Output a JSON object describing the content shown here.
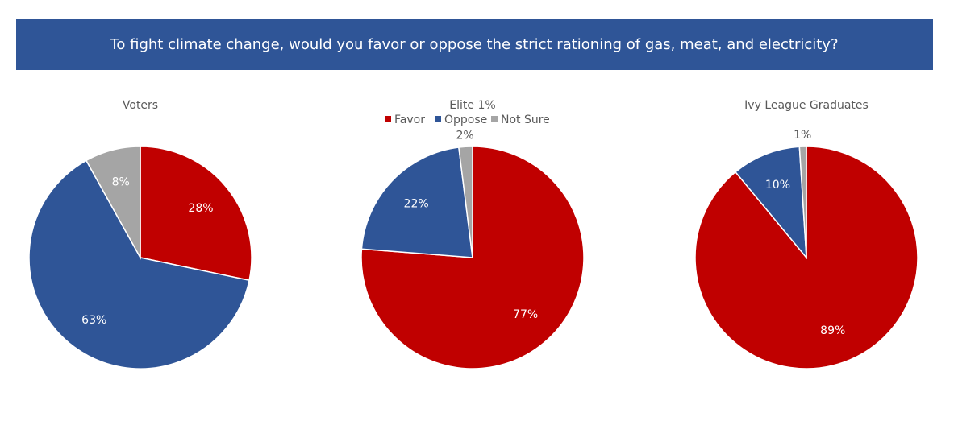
{
  "title": "To fight climate change, would you favor or oppose the strict rationing of gas, meat, and electricity?",
  "chart_data": [
    {
      "type": "pie",
      "title": "Voters",
      "categories": [
        "Favor",
        "Oppose",
        "Not Sure"
      ],
      "values": [
        28,
        63,
        8
      ],
      "value_labels": [
        "28%",
        "63%",
        "8%"
      ],
      "colors": [
        "#c00000",
        "#2f5597",
        "#a5a5a5"
      ]
    },
    {
      "type": "pie",
      "title": "Elite 1%",
      "categories": [
        "Favor",
        "Oppose",
        "Not Sure"
      ],
      "values": [
        77,
        22,
        2
      ],
      "value_labels": [
        "77%",
        "22%",
        "2%"
      ],
      "colors": [
        "#c00000",
        "#2f5597",
        "#a5a5a5"
      ],
      "legend": "top"
    },
    {
      "type": "pie",
      "title": "Ivy League Graduates",
      "categories": [
        "Favor",
        "Oppose",
        "Not Sure"
      ],
      "values": [
        89,
        10,
        1
      ],
      "value_labels": [
        "89%",
        "10%",
        "1%"
      ],
      "colors": [
        "#c00000",
        "#2f5597",
        "#a5a5a5"
      ]
    }
  ]
}
